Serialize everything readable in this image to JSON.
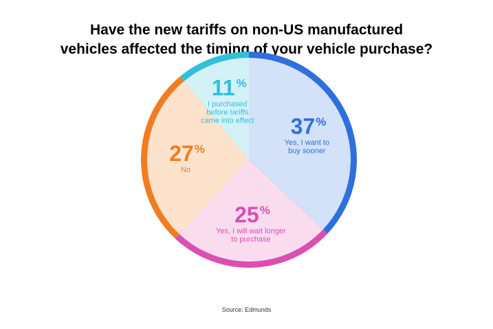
{
  "title": {
    "line1": "Have the new tariffs on non-US manufactured",
    "line2": "vehicles affected the timing of your vehicle purchase?"
  },
  "source": "Source: Edmunds",
  "chart_data": {
    "type": "pie",
    "title": "Have the new tariffs on non-US manufactured vehicles affected the timing of your vehicle purchase?",
    "unit": "%",
    "start_angle_deg": 0,
    "direction": "clockwise",
    "slices": [
      {
        "value": 37,
        "label": "37",
        "label_lines": [
          "Yes, I want to",
          "buy sooner"
        ],
        "color": "#2f6fde",
        "fill": "#d3e2f8"
      },
      {
        "value": 25,
        "label": "25",
        "label_lines": [
          "Yes, I will wait longer",
          "to purchase"
        ],
        "color": "#d94fb2",
        "fill": "#fadcef"
      },
      {
        "value": 27,
        "label": "27",
        "label_lines": [
          "No"
        ],
        "color": "#f07d22",
        "fill": "#fde3cc"
      },
      {
        "value": 11,
        "label": "11",
        "label_lines": [
          "I purchased",
          "before tariffs",
          "came into effect"
        ],
        "color": "#31c0d8",
        "fill": "#d3f2f7"
      }
    ]
  }
}
